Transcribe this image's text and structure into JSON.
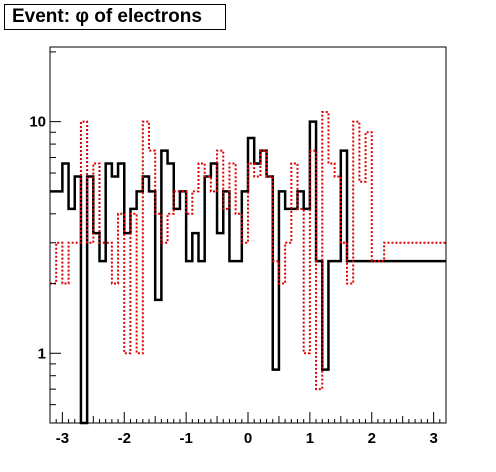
{
  "chart_data": {
    "type": "histogram",
    "title": "Event: φ of electrons",
    "xlim": [
      -3.2,
      3.2
    ],
    "ylim": [
      0.5,
      21
    ],
    "yscale": "log",
    "xticks": [
      -3,
      -2,
      -1,
      0,
      1,
      2,
      3
    ],
    "yticks": [
      1,
      10
    ],
    "bin_edges_start": -3.2,
    "bin_width": 0.1,
    "series": [
      {
        "style": "solid",
        "color": "#000000",
        "values": [
          5,
          5,
          6.6,
          4.2,
          5.8,
          0.5,
          5.8,
          3.3,
          2.5,
          6.6,
          5.8,
          6.6,
          3.3,
          4.2,
          5,
          5.8,
          5,
          1.7,
          7.5,
          6.6,
          4.2,
          5,
          2.5,
          3.3,
          2.5,
          5.8,
          6.6,
          3.3,
          5,
          2.5,
          2.5,
          5,
          8.5,
          6.6,
          7.5,
          5.8,
          0.85,
          5,
          4.2,
          4.2,
          5,
          4.2,
          10,
          2.5,
          0.85,
          2.5,
          2.5,
          7.5,
          2.5,
          2.5,
          2.5,
          2.5,
          2.5,
          2.5,
          2.5,
          2.5,
          2.5,
          2.5,
          2.5,
          2.5,
          2.5,
          2.5,
          2.5,
          2.5
        ]
      },
      {
        "style": "dotted",
        "color": "#dd0000",
        "values": [
          2,
          3,
          2,
          3,
          3,
          10,
          3,
          6.6,
          3,
          3,
          2,
          4,
          1,
          4,
          1,
          10,
          7.5,
          4,
          3,
          4,
          5,
          5,
          4,
          5,
          6.6,
          5.8,
          5,
          7.5,
          4.2,
          6.6,
          4,
          3,
          6.6,
          5.8,
          7.5,
          5.8,
          2.5,
          2,
          3,
          6.6,
          4.2,
          1,
          7.5,
          0.7,
          11,
          6.6,
          5.8,
          3,
          2,
          10,
          5.5,
          9,
          2.5,
          2.5,
          3,
          3,
          3,
          3,
          3,
          3,
          3,
          3,
          3,
          3
        ]
      }
    ]
  }
}
